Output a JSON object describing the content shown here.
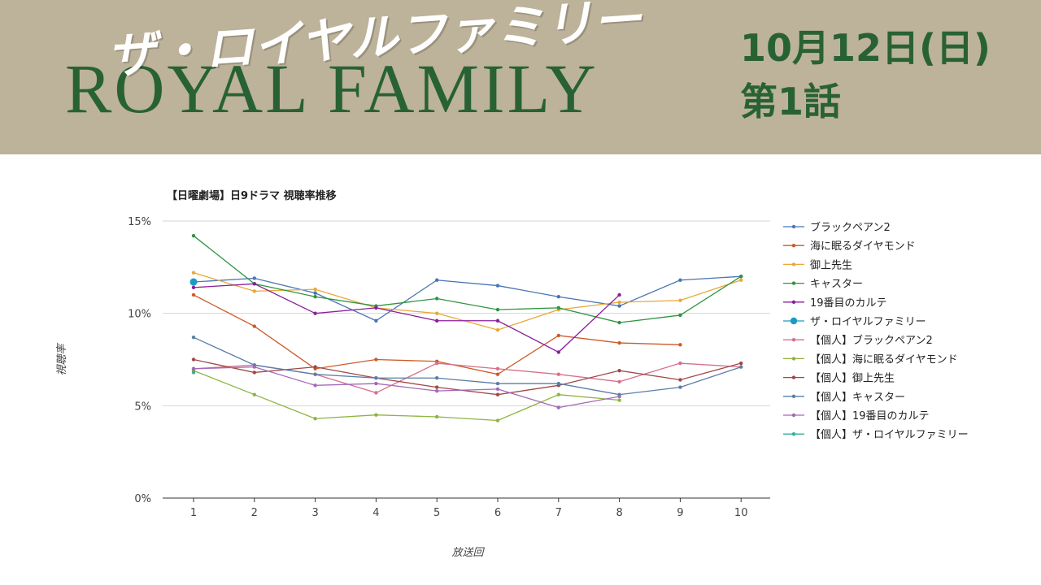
{
  "banner": {
    "title_en": "ROYAL FAMILY",
    "title_ja": "ザ・ロイヤルファミリー",
    "date": "10月12日(日)",
    "episode": "第1話"
  },
  "chart_data": {
    "type": "line",
    "title": "【日曜劇場】日9ドラマ 視聴率推移",
    "xlabel": "放送回",
    "ylabel": "視聴率",
    "categories": [
      "1",
      "2",
      "3",
      "4",
      "5",
      "6",
      "7",
      "8",
      "9",
      "10"
    ],
    "ylim": [
      0,
      15
    ],
    "yticks": [
      0,
      5,
      10,
      15
    ],
    "ytick_labels": [
      "0%",
      "5%",
      "10%",
      "15%"
    ],
    "grid": true,
    "legend_position": "right",
    "series": [
      {
        "name": "ブラックペアン2",
        "color": "#4a74b4",
        "values": [
          11.7,
          11.9,
          11.1,
          9.6,
          11.8,
          11.5,
          10.9,
          10.4,
          11.8,
          12.0
        ]
      },
      {
        "name": "海に眠るダイヤモンド",
        "color": "#cc5a2a",
        "values": [
          11.0,
          9.3,
          7.0,
          7.5,
          7.4,
          6.7,
          8.8,
          8.4,
          8.3,
          null
        ]
      },
      {
        "name": "御上先生",
        "color": "#e8a838",
        "values": [
          12.2,
          11.2,
          11.3,
          10.3,
          10.0,
          9.1,
          10.2,
          10.6,
          10.7,
          11.8
        ]
      },
      {
        "name": "キャスター",
        "color": "#2f9440",
        "values": [
          14.2,
          11.6,
          10.9,
          10.4,
          10.8,
          10.2,
          10.3,
          9.5,
          9.9,
          12.0
        ]
      },
      {
        "name": "19番目のカルテ",
        "color": "#8a1f9a",
        "values": [
          11.4,
          11.6,
          10.0,
          10.3,
          9.6,
          9.6,
          7.9,
          11.0,
          null,
          null
        ]
      },
      {
        "name": "ザ・ロイヤルファミリー",
        "color": "#1a9ac4",
        "values": [
          11.7,
          null,
          null,
          null,
          null,
          null,
          null,
          null,
          null,
          null
        ],
        "highlight": true
      },
      {
        "name": "【個人】ブラックペアン2",
        "color": "#d6708a",
        "values": [
          7.0,
          7.2,
          6.7,
          5.7,
          7.3,
          7.0,
          6.7,
          6.3,
          7.3,
          7.1
        ]
      },
      {
        "name": "【個人】海に眠るダイヤモンド",
        "color": "#8db440",
        "values": [
          6.9,
          5.6,
          4.3,
          4.5,
          4.4,
          4.2,
          5.6,
          5.3,
          null,
          null
        ]
      },
      {
        "name": "【個人】御上先生",
        "color": "#a04848",
        "values": [
          7.5,
          6.8,
          7.1,
          6.5,
          6.0,
          5.6,
          6.1,
          6.9,
          6.4,
          7.3
        ]
      },
      {
        "name": "【個人】キャスター",
        "color": "#5a7ea8",
        "values": [
          8.7,
          7.2,
          6.7,
          6.5,
          6.5,
          6.2,
          6.2,
          5.6,
          6.0,
          7.1
        ]
      },
      {
        "name": "【個人】19番目のカルテ",
        "color": "#a468b8",
        "values": [
          7.0,
          7.1,
          6.1,
          6.2,
          5.8,
          5.9,
          4.9,
          5.5,
          null,
          null
        ]
      },
      {
        "name": "【個人】ザ・ロイヤルファミリー",
        "color": "#30b09a",
        "values": [
          6.8,
          null,
          null,
          null,
          null,
          null,
          null,
          null,
          null,
          null
        ]
      }
    ]
  }
}
